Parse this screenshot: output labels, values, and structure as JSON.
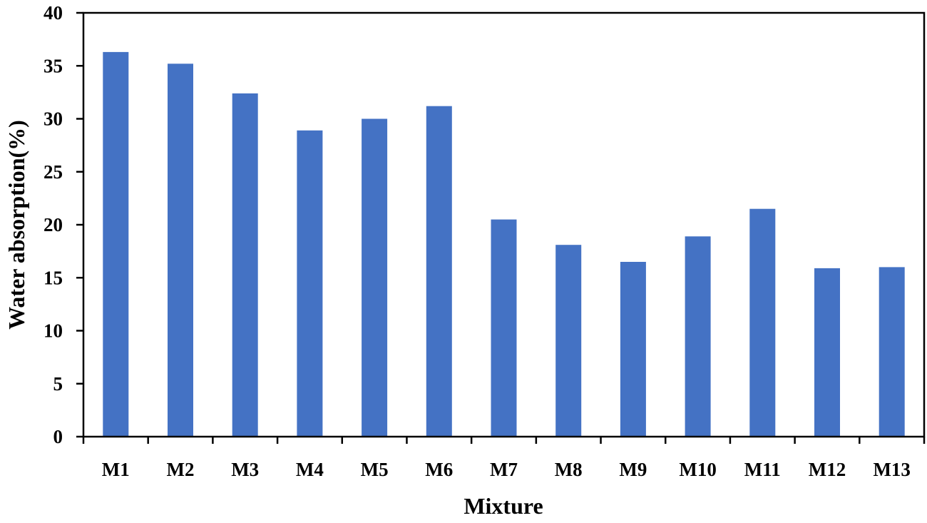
{
  "chart_data": {
    "type": "bar",
    "title": "",
    "xlabel": "Mixture",
    "ylabel": "Water absorption(%)",
    "categories": [
      "M1",
      "M2",
      "M3",
      "M4",
      "M5",
      "M6",
      "M7",
      "M8",
      "M9",
      "M10",
      "M11",
      "M12",
      "M13"
    ],
    "values": [
      36.3,
      35.2,
      32.4,
      28.9,
      30.0,
      31.2,
      20.5,
      18.1,
      16.5,
      18.9,
      21.5,
      15.9,
      16.0
    ],
    "ylim": [
      0,
      40
    ],
    "yticks": [
      0,
      5,
      10,
      15,
      20,
      25,
      30,
      35,
      40
    ],
    "grid": false,
    "legend": null,
    "bar_color": "#4472C4"
  }
}
